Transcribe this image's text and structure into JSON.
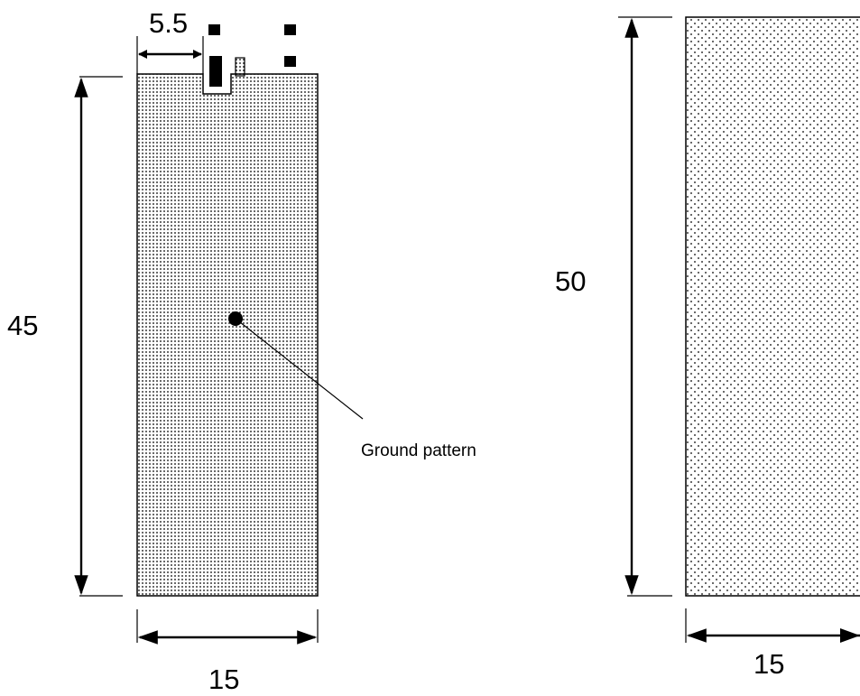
{
  "left_board": {
    "height_label": "45",
    "width_label": "15",
    "offset_label": "5.5",
    "annotation": "Ground pattern"
  },
  "right_board": {
    "height_label": "50",
    "width_label": "15"
  },
  "colors": {
    "ink": "#000000",
    "dense_dot_fill": "#000000",
    "sparse_dot_fill": "#000000"
  }
}
